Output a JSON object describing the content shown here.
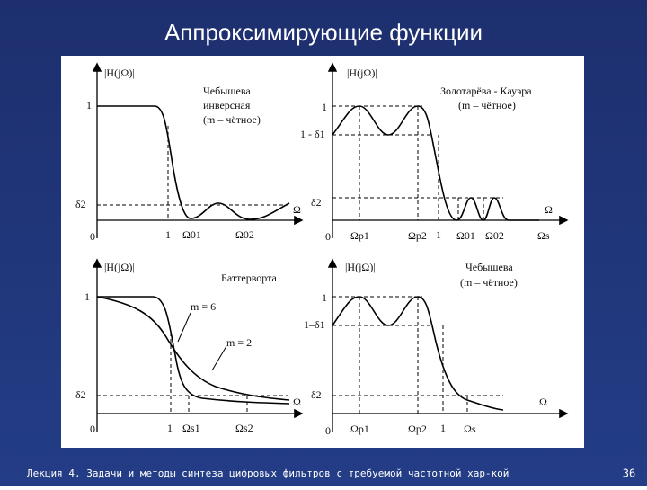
{
  "title": "Аппроксимирующие функции",
  "panels": [
    {
      "axis_label": "|H(jΩ)|",
      "captions": [
        "Чебышева",
        "инверсная",
        "(m – чётное)"
      ],
      "y_labels": [
        "1",
        "δ2"
      ],
      "x_labels": [
        "0",
        "1",
        "Ω01",
        "Ω02"
      ],
      "x_axis_label": "Ω"
    },
    {
      "axis_label": "|H(jΩ)|",
      "captions": [
        "Золотарёва - Кауэра",
        "(m – чётное)"
      ],
      "y_labels": [
        "1",
        "1 - δ1",
        "δ2"
      ],
      "x_labels": [
        "0",
        "Ωp1",
        "Ωp2",
        "1",
        "Ω01",
        "Ω02",
        "Ωs"
      ],
      "x_axis_label": "Ω"
    },
    {
      "axis_label": "|H(jΩ)|",
      "captions": [
        "Баттерворта",
        "m = 6",
        "m = 2"
      ],
      "y_labels": [
        "1",
        "δ2"
      ],
      "x_labels": [
        "0",
        "1",
        "Ωs1",
        "Ωs2"
      ],
      "x_axis_label": "Ω"
    },
    {
      "axis_label": "|H(jΩ)|",
      "captions": [
        "Чебышева",
        "(m – чётное)"
      ],
      "y_labels": [
        "1",
        "1–δ1",
        "δ2"
      ],
      "x_labels": [
        "0",
        "Ωp1",
        "Ωp2",
        "1",
        "Ωs"
      ],
      "x_axis_label": "Ω"
    }
  ],
  "footer": {
    "lecture": "Лекция 4. Задачи и методы синтеза цифровых фильтров с требуемой частотной хар-кой",
    "page": "36"
  }
}
